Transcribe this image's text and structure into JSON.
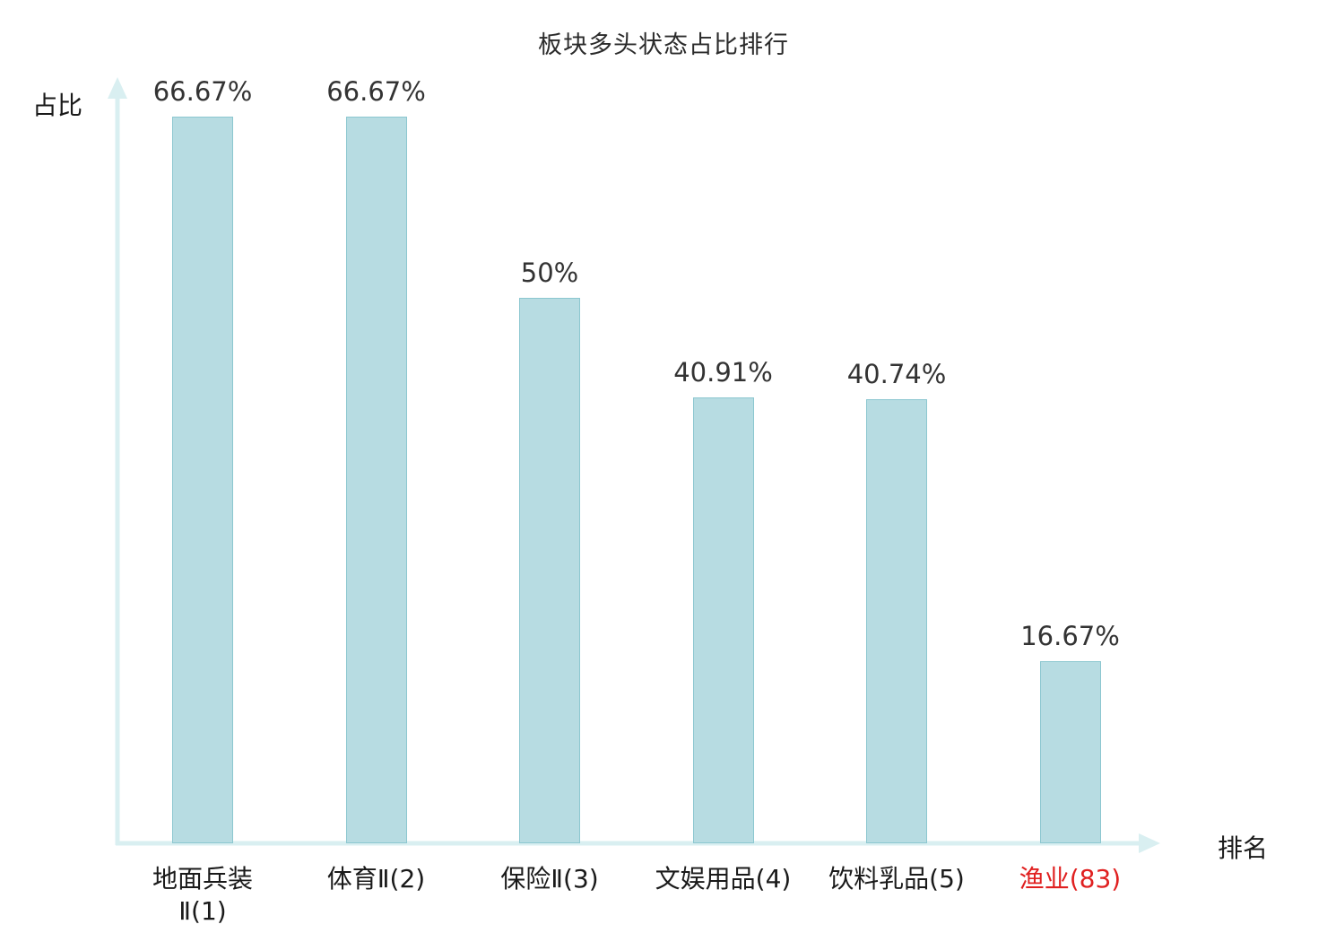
{
  "chart_data": {
    "type": "bar",
    "title": "板块多头状态占比排行",
    "xlabel": "排名",
    "ylabel": "占比",
    "categories": [
      "地面兵装\nⅡ(1)",
      "体育Ⅱ(2)",
      "保险Ⅱ(3)",
      "文娱用品(4)",
      "饮料乳品(5)",
      "渔业(83)"
    ],
    "values": [
      66.67,
      66.67,
      50,
      40.91,
      40.74,
      16.67
    ],
    "value_labels": [
      "66.67%",
      "66.67%",
      "50%",
      "40.91%",
      "40.74%",
      "16.67%"
    ],
    "ylim": [
      0,
      70
    ],
    "grid": false,
    "legend": "none",
    "highlight_index": 5,
    "colors": {
      "bar_fill": "#b7dce2",
      "bar_stroke": "#8cc7d0",
      "axis": "#d9eff1",
      "category_label": "#1a1a1a",
      "value_label": "#333333",
      "highlight_label": "#e02020"
    }
  }
}
